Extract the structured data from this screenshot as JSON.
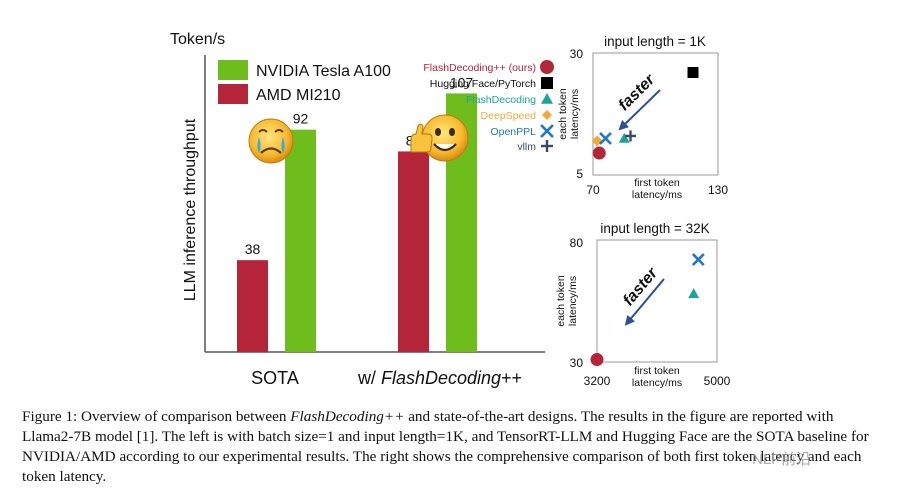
{
  "chart_data": [
    {
      "type": "bar",
      "ylabel": "LLM inference throughput",
      "y_unit": "Token/s",
      "categories": [
        "SOTA",
        "w/ FlashDecoding++"
      ],
      "category_parts": [
        {
          "plain": "SOTA",
          "italic": "",
          "suffix": ""
        },
        {
          "plain": "w/ ",
          "italic": "FlashDecoding",
          "suffix": "++"
        }
      ],
      "series": [
        {
          "name": "AMD MI210",
          "values": [
            38,
            83
          ],
          "color": "#b5253a"
        },
        {
          "name": "NVIDIA Tesla A100",
          "values": [
            92,
            107
          ],
          "color": "#6fbd1c"
        }
      ],
      "legend_order": [
        "NVIDIA Tesla A100",
        "AMD MI210"
      ],
      "ylim": [
        0,
        120
      ],
      "grid": false,
      "emoji": [
        "sad-face",
        "happy-thumbs-up-face"
      ]
    },
    {
      "type": "scatter",
      "title": "input length = 1K",
      "xlabel": "first token latency/ms",
      "ylabel": "each token latency/ms",
      "xlim": [
        70,
        130
      ],
      "ylim": [
        5,
        30
      ],
      "xticks": [
        "70",
        "130"
      ],
      "yticks": [
        "5",
        "30"
      ],
      "annotation": "faster",
      "points": [
        {
          "series": "FlashDecoding++ (ours)",
          "x": 73,
          "y": 9.5
        },
        {
          "series": "Hugging Face/PyTorch",
          "x": 118,
          "y": 26
        },
        {
          "series": "FlashDecoding",
          "x": 85,
          "y": 12.5
        },
        {
          "series": "DeepSpeed",
          "x": 72,
          "y": 12
        },
        {
          "series": "OpenPPL",
          "x": 76,
          "y": 12.5
        },
        {
          "series": "vllm",
          "x": 88,
          "y": 13
        }
      ]
    },
    {
      "type": "scatter",
      "title": "input length = 32K",
      "xlabel": "first token latency/ms",
      "ylabel": "each token latency/ms",
      "xlim": [
        3200,
        5000
      ],
      "ylim": [
        30,
        80
      ],
      "xticks": [
        "3200",
        "5000"
      ],
      "yticks": [
        "30",
        "80"
      ],
      "annotation": "faster",
      "points": [
        {
          "series": "FlashDecoding++ (ours)",
          "x": 3200,
          "y": 31
        },
        {
          "series": "FlashDecoding",
          "x": 4650,
          "y": 58
        },
        {
          "series": "OpenPPL",
          "x": 4720,
          "y": 72
        }
      ]
    }
  ],
  "legend_series": [
    {
      "name": "FlashDecoding++ (ours)",
      "color": "#b5253a",
      "marker": "circle",
      "icon": "circle-marker-icon"
    },
    {
      "name": "Hugging Face/PyTorch",
      "color": "#000000",
      "marker": "square",
      "icon": "square-marker-icon"
    },
    {
      "name": "FlashDecoding",
      "color": "#1aa598",
      "marker": "triangle",
      "icon": "triangle-marker-icon"
    },
    {
      "name": "DeepSpeed",
      "color": "#f4a83a",
      "marker": "diamond",
      "icon": "diamond-marker-icon"
    },
    {
      "name": "OpenPPL",
      "color": "#1f79c9",
      "marker": "x",
      "icon": "x-marker-icon"
    },
    {
      "name": "vllm",
      "color": "#3a4a66",
      "marker": "plus",
      "icon": "plus-marker-icon"
    }
  ],
  "caption": {
    "label": "Figure 1: Overview of comparison between ",
    "italic": "FlashDecoding++",
    "rest": " and state-of-the-art designs. The results in the figure are reported with Llama2-7B model [1]. The left is with batch size=1 and input length=1K, and TensorRT-LLM and Hugging Face are the SOTA baseline for NVIDIA/AMD according to our experimental results. The right shows the comprehensive comparison of both first token latency and each token latency."
  },
  "watermark": "NLP前沿"
}
